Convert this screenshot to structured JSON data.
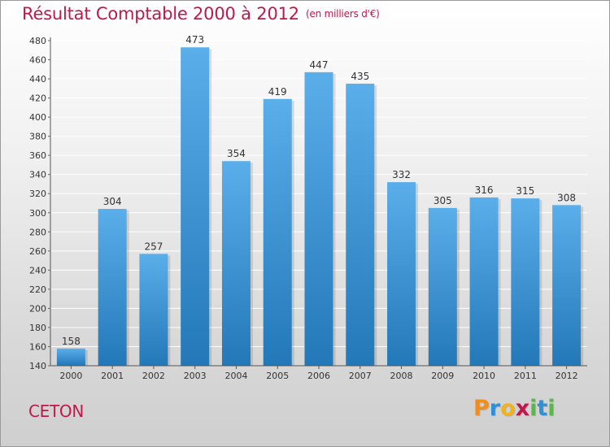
{
  "header": {
    "title": "Résultat Comptable 2000 à 2012",
    "subtitle": "(en milliers d'€)"
  },
  "footer": {
    "city": "CETON",
    "brand": "Proxiti",
    "brand_letters": [
      {
        "char": "P",
        "color": "#f28c1a"
      },
      {
        "char": "r",
        "color": "#2f8fd8"
      },
      {
        "char": "o",
        "color": "#f2b21a"
      },
      {
        "char": "x",
        "color": "#c0184a"
      },
      {
        "char": "i",
        "color": "#57b947"
      },
      {
        "char": "t",
        "color": "#2f8fd8"
      },
      {
        "char": "i",
        "color": "#57b947"
      }
    ]
  },
  "colors": {
    "accent": "#c0184a",
    "bar_light": "#5aaeea",
    "bar_dark": "#2378b8"
  },
  "chart_data": {
    "type": "bar",
    "title": "Résultat Comptable 2000 à 2012",
    "subtitle": "(en milliers d'€)",
    "xlabel": "",
    "ylabel": "",
    "categories": [
      "2000",
      "2001",
      "2002",
      "2003",
      "2004",
      "2005",
      "2006",
      "2007",
      "2008",
      "2009",
      "2010",
      "2011",
      "2012"
    ],
    "values": [
      158,
      304,
      257,
      473,
      354,
      419,
      447,
      435,
      332,
      305,
      316,
      315,
      308
    ],
    "ylim": [
      140,
      480
    ],
    "yticks": [
      140,
      160,
      180,
      200,
      220,
      240,
      260,
      280,
      300,
      320,
      340,
      360,
      380,
      400,
      420,
      440,
      460,
      480
    ],
    "grid": true,
    "legend": "none"
  }
}
